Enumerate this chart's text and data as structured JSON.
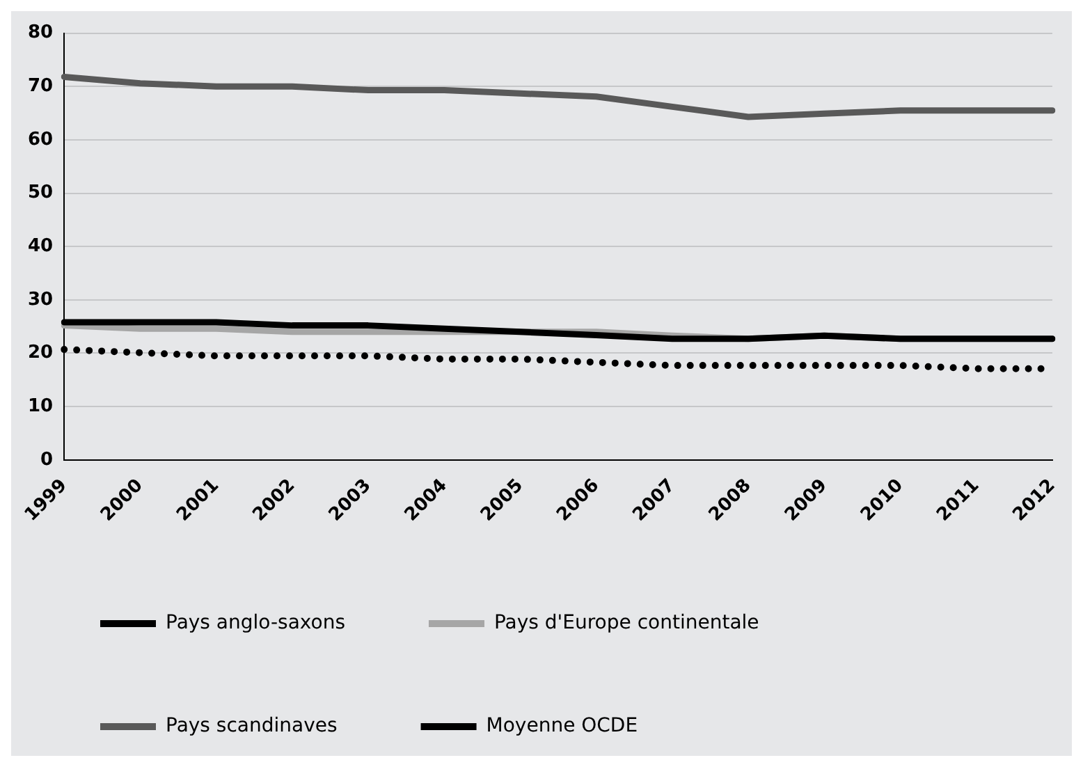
{
  "chart_data": {
    "type": "line",
    "categories": [
      "1999",
      "2000",
      "2001",
      "2002",
      "2003",
      "2004",
      "2005",
      "2006",
      "2007",
      "2008",
      "2009",
      "2010",
      "2011",
      "2012"
    ],
    "series": [
      {
        "name": "Pays anglo-saxons",
        "color": "#000000",
        "values": [
          25.8,
          25.8,
          25.8,
          25.2,
          25.2,
          24.6,
          24,
          23.4,
          22.7,
          22.7,
          23.3,
          22.7,
          22.7,
          22.7
        ]
      },
      {
        "name": "Pays d'Europe continentale",
        "color": "#a6a6a6",
        "values": [
          25.2,
          24.6,
          24.6,
          24,
          24,
          24,
          24,
          24,
          23.3,
          22.7,
          23.3,
          22.7,
          22.7,
          22.7
        ]
      },
      {
        "name": "Pays scandinaves",
        "color": "#595959",
        "values": [
          71.8,
          70.6,
          70,
          70,
          69.3,
          69.3,
          68.7,
          68.1,
          66.2,
          64.3,
          64.9,
          65.5,
          65.5,
          65.5
        ]
      },
      {
        "name": "Moyenne OCDE",
        "color": "#000000",
        "line_style": "dotted",
        "values": [
          20.7,
          20.1,
          19.5,
          19.5,
          19.5,
          18.9,
          18.9,
          18.3,
          17.7,
          17.7,
          17.7,
          17.7,
          17.1,
          17.1
        ]
      }
    ],
    "ylim": [
      0,
      80
    ],
    "yticks": [
      0,
      10,
      20,
      30,
      40,
      50,
      60,
      70,
      80
    ],
    "grid": "y",
    "legend": "bottom",
    "marker": "none",
    "line_style": "solid"
  }
}
